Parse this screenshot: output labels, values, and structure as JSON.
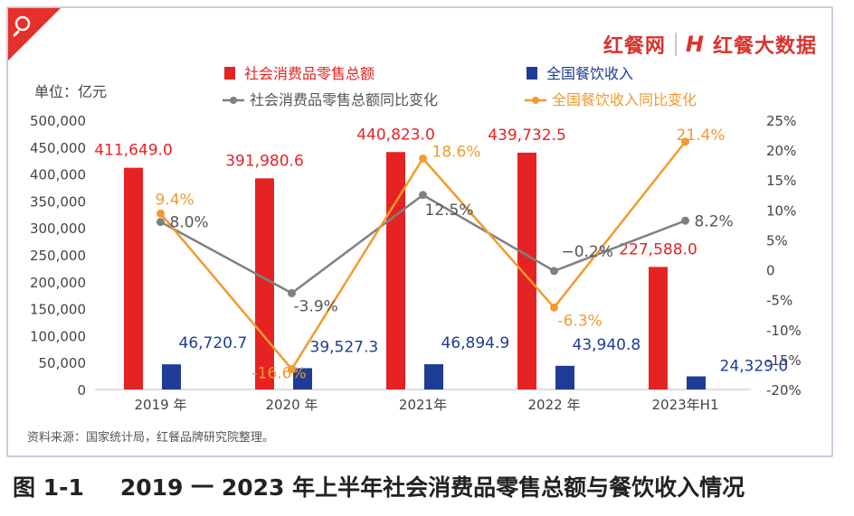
{
  "brand": {
    "name_left": "红餐网",
    "name_right": "红餐大数据"
  },
  "caption": {
    "figure_no": "图 1-1",
    "title": "2019 一 2023 年上半年社会消费品零售总额与餐饮收入情况"
  },
  "colors": {
    "retail": "#e52323",
    "catering": "#1e3c96",
    "retail_growth": "#808080",
    "catering_growth": "#f29a2e",
    "accent": "#e5302b"
  },
  "chart_data": {
    "type": "bar",
    "unit_label": "单位：亿元",
    "source": "资料来源：国家统计局，红餐品牌研究院整理。",
    "categories": [
      "2019 年",
      "2020 年",
      "2021年",
      "2022 年",
      "2023年H1"
    ],
    "y_left": {
      "min": 0,
      "max": 500000,
      "step": 50000,
      "ticks": [
        "0",
        "50,000",
        "100,000",
        "150,000",
        "200,000",
        "250,000",
        "300,000",
        "350,000",
        "400,000",
        "450,000",
        "500,000"
      ]
    },
    "y_right": {
      "min": -20,
      "max": 25,
      "step": 5,
      "ticks": [
        "-20%",
        "-15%",
        "-10%",
        "-5%",
        "0",
        "5%",
        "10%",
        "15%",
        "20%",
        "25%"
      ]
    },
    "series": [
      {
        "name": "社会消费品零售总额",
        "kind": "bar",
        "axis": "left",
        "values": [
          411649.0,
          391980.6,
          440823.0,
          439732.5,
          227588.0
        ],
        "labels": [
          "411,649.0",
          "391,980.6",
          "440,823.0",
          "439,732.5",
          "227,588.0"
        ]
      },
      {
        "name": "全国餐饮收入",
        "kind": "bar",
        "axis": "left",
        "values": [
          46720.7,
          39527.3,
          46894.9,
          43940.8,
          24329.0
        ],
        "labels": [
          "46,720.7",
          "39,527.3",
          "46,894.9",
          "43,940.8",
          "24,329.0"
        ]
      },
      {
        "name": "社会消费品零售总额同比变化",
        "kind": "line",
        "axis": "right",
        "values": [
          8.0,
          -3.9,
          12.5,
          -0.2,
          8.2
        ],
        "labels": [
          "8.0%",
          "-3.9%",
          "12.5%",
          "−0.2%",
          "8.2%"
        ]
      },
      {
        "name": "全国餐饮收入同比变化",
        "kind": "line",
        "axis": "right",
        "values": [
          9.4,
          -16.6,
          18.6,
          -6.3,
          21.4
        ],
        "labels": [
          "9.4%",
          "-16.6%",
          "18.6%",
          "-6.3%",
          "21.4%"
        ]
      }
    ],
    "grid": false,
    "legend_position": "top"
  }
}
